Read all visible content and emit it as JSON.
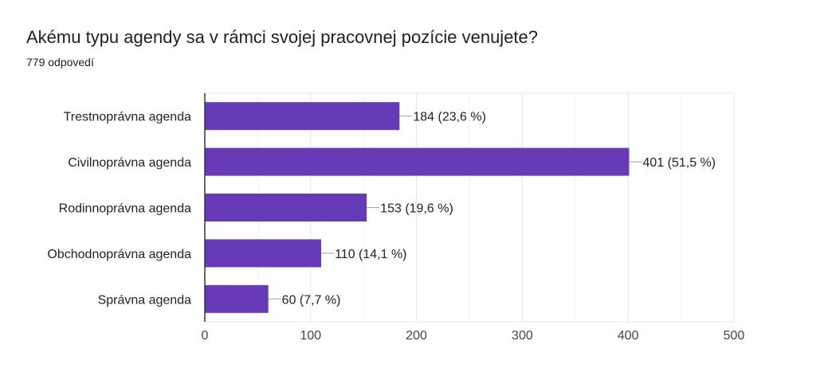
{
  "title": "Akému typu agendy sa v rámci svojej pracovnej pozície venujete?",
  "response_count": "779 odpovedí",
  "colors": {
    "bar": "#673ab7",
    "grid": "#e6e6e6",
    "axis": "#333333",
    "leader": "#9e9e9e"
  },
  "chart_data": {
    "type": "bar",
    "orientation": "horizontal",
    "title": "Akému typu agendy sa v rámci svojej pracovnej pozície venujete?",
    "subtitle": "779 odpovedí",
    "categories": [
      "Trestnoprávna agenda",
      "Civilnoprávna agenda",
      "Rodinnoprávna agenda",
      "Obchodnoprávna agenda",
      "Správna agenda"
    ],
    "values": [
      184,
      401,
      153,
      110,
      60
    ],
    "data_labels": [
      "184 (23,6 %)",
      "401 (51,5 %)",
      "153 (19,6 %)",
      "110 (14,1 %)",
      "60 (7,7 %)"
    ],
    "xlim": [
      0,
      500
    ],
    "x_ticks": [
      0,
      100,
      200,
      300,
      400,
      500
    ],
    "xlabel": "",
    "ylabel": "",
    "grid": true
  }
}
